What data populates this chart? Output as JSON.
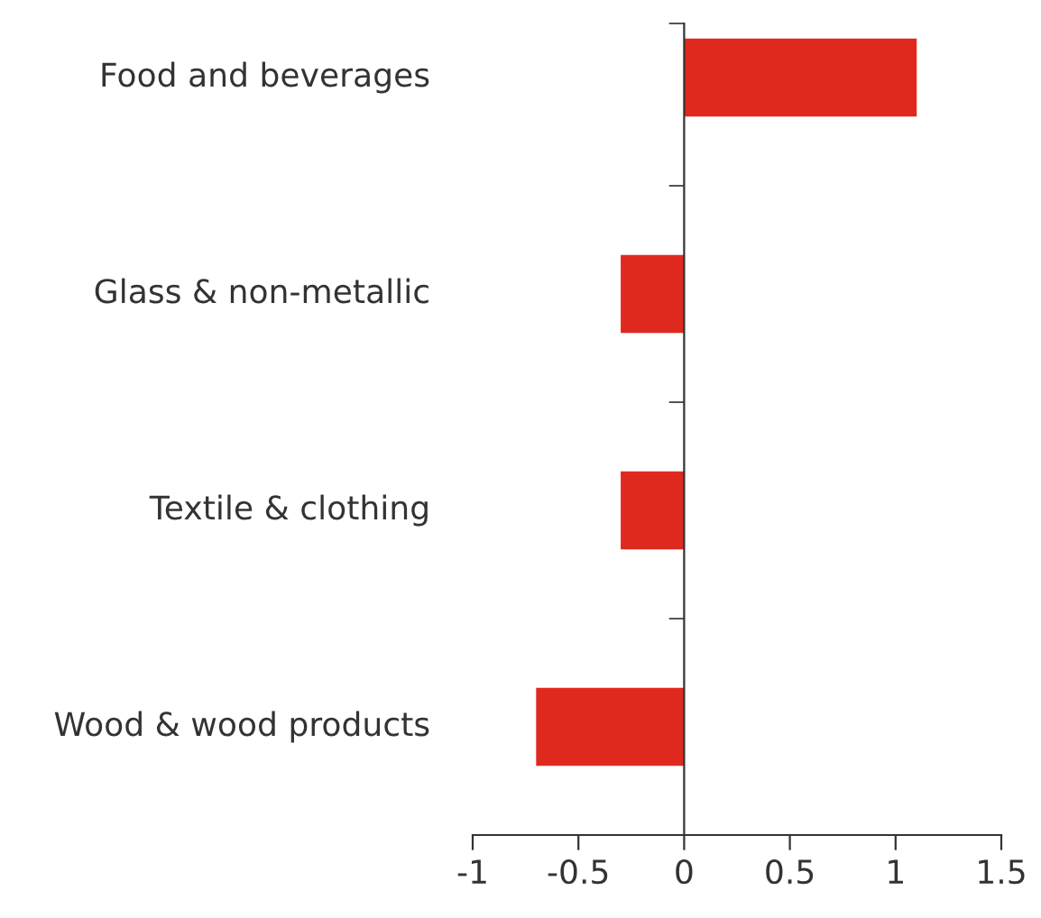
{
  "chart_data": {
    "type": "bar",
    "orientation": "horizontal",
    "categories": [
      "Food and beverages",
      "Glass & non-metallic",
      "Textile & clothing",
      "Wood & wood products"
    ],
    "values": [
      1.1,
      -0.3,
      -0.3,
      -0.7
    ],
    "color": "#e0291e",
    "xlim": [
      -1,
      1.5
    ],
    "xticks": [
      -1,
      -0.5,
      0,
      0.5,
      1,
      1.5
    ]
  }
}
